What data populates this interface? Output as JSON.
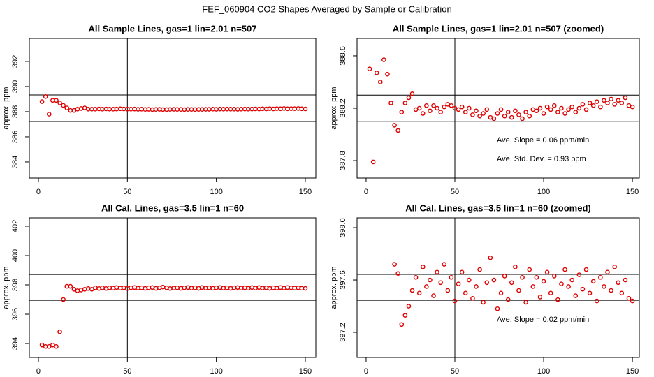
{
  "title": "FEF_060904  CO2 Shapes Averaged by Sample or Calibration",
  "chart_data": [
    {
      "type": "scatter",
      "title": "All Sample Lines, gas=1 lin=2.01 n=507",
      "ylabel": "approx. ppm",
      "color": "#e00000",
      "xlim": [
        -5.1,
        155.9
      ],
      "ylim": [
        382.72,
        393.83
      ],
      "xticks": [
        0,
        50,
        100,
        150
      ],
      "yticks": [
        384,
        386,
        388,
        390,
        392
      ],
      "hlines": [
        389.33,
        387.22
      ],
      "vline": 50,
      "x": [
        2,
        4,
        6,
        8,
        10,
        12,
        14,
        16,
        18,
        20,
        22,
        24,
        26,
        28,
        30,
        32,
        34,
        36,
        38,
        40,
        42,
        44,
        46,
        48,
        50,
        52,
        54,
        56,
        58,
        60,
        62,
        64,
        66,
        68,
        70,
        72,
        74,
        76,
        78,
        80,
        82,
        84,
        86,
        88,
        90,
        92,
        94,
        96,
        98,
        100,
        102,
        104,
        106,
        108,
        110,
        112,
        114,
        116,
        118,
        120,
        122,
        124,
        126,
        128,
        130,
        132,
        134,
        136,
        138,
        140,
        142,
        144,
        146,
        148,
        150
      ],
      "values": [
        388.8,
        389.2,
        387.8,
        388.9,
        388.9,
        388.7,
        388.5,
        388.3,
        388.1,
        388.1,
        388.2,
        388.25,
        388.3,
        388.2,
        388.2,
        388.2,
        388.22,
        388.2,
        388.22,
        388.2,
        388.2,
        388.21,
        388.23,
        388.22,
        388.2,
        388.2,
        388.21,
        388.19,
        388.2,
        388.18,
        388.19,
        388.17,
        388.18,
        388.19,
        388.17,
        388.17,
        388.18,
        388.19,
        388.18,
        388.18,
        388.17,
        388.18,
        388.18,
        388.17,
        388.18,
        388.18,
        388.19,
        388.19,
        388.2,
        388.19,
        388.21,
        388.2,
        388.21,
        388.2,
        388.2,
        388.19,
        388.2,
        388.21,
        388.2,
        388.21,
        388.22,
        388.21,
        388.23,
        388.22,
        388.24,
        388.22,
        388.24,
        388.23,
        388.25,
        388.23,
        388.24,
        388.24,
        388.25,
        388.23,
        388.22
      ]
    },
    {
      "type": "scatter",
      "title": "All Sample Lines, gas=1 lin=2.01 n=507 (zoomed)",
      "ylabel": "approx. ppm",
      "color": "#e00000",
      "xlim": [
        -5.1,
        153.9
      ],
      "ylim": [
        387.667,
        388.733
      ],
      "xticks": [
        0,
        50,
        100,
        150
      ],
      "yticks": [
        387.8,
        388.2,
        388.6
      ],
      "hlines": [
        388.3,
        388.1
      ],
      "vline": 50,
      "annotations": [
        "Ave. Slope =  0.06  ppm/min",
        "Ave. Std. Dev. =  0.93  ppm"
      ],
      "x": [
        2,
        4,
        6,
        8,
        10,
        12,
        14,
        16,
        18,
        20,
        22,
        24,
        26,
        28,
        30,
        32,
        34,
        36,
        38,
        40,
        42,
        44,
        46,
        48,
        50,
        52,
        54,
        56,
        58,
        60,
        62,
        64,
        66,
        68,
        70,
        72,
        74,
        76,
        78,
        80,
        82,
        84,
        86,
        88,
        90,
        92,
        94,
        96,
        98,
        100,
        102,
        104,
        106,
        108,
        110,
        112,
        114,
        116,
        118,
        120,
        122,
        124,
        126,
        128,
        130,
        132,
        134,
        136,
        138,
        140,
        142,
        144,
        146,
        148,
        150
      ],
      "values": [
        388.5,
        387.79,
        388.47,
        388.4,
        388.57,
        388.46,
        388.24,
        388.07,
        388.03,
        388.17,
        388.24,
        388.28,
        388.31,
        388.19,
        388.2,
        388.16,
        388.22,
        388.18,
        388.22,
        388.2,
        388.17,
        388.21,
        388.23,
        388.22,
        388.2,
        388.19,
        388.21,
        388.17,
        388.2,
        388.15,
        388.18,
        388.14,
        388.16,
        388.19,
        388.13,
        388.12,
        388.16,
        388.19,
        388.14,
        388.17,
        388.13,
        388.18,
        388.15,
        388.12,
        388.17,
        388.14,
        388.19,
        388.18,
        388.2,
        388.16,
        388.21,
        388.19,
        388.22,
        388.17,
        388.2,
        388.16,
        388.19,
        388.21,
        388.17,
        388.2,
        388.23,
        388.19,
        388.24,
        388.22,
        388.25,
        388.21,
        388.26,
        388.24,
        388.27,
        388.23,
        388.26,
        388.24,
        388.28,
        388.22,
        388.21
      ]
    },
    {
      "type": "scatter",
      "title": "All Cal. Lines, gas=3.5 lin=1 n=60",
      "ylabel": "approx. ppm",
      "color": "#e00000",
      "xlim": [
        -5.1,
        155.9
      ],
      "ylim": [
        393.05,
        402.57
      ],
      "xticks": [
        0,
        50,
        100,
        150
      ],
      "yticks": [
        394,
        396,
        398,
        400,
        402
      ],
      "hlines": [
        398.71,
        396.95
      ],
      "vline": 50,
      "x": [
        2,
        4,
        6,
        8,
        10,
        12,
        14,
        16,
        18,
        20,
        22,
        24,
        26,
        28,
        30,
        32,
        34,
        36,
        38,
        40,
        42,
        44,
        46,
        48,
        50,
        52,
        54,
        56,
        58,
        60,
        62,
        64,
        66,
        68,
        70,
        72,
        74,
        76,
        78,
        80,
        82,
        84,
        86,
        88,
        90,
        92,
        94,
        96,
        98,
        100,
        102,
        104,
        106,
        108,
        110,
        112,
        114,
        116,
        118,
        120,
        122,
        124,
        126,
        128,
        130,
        132,
        134,
        136,
        138,
        140,
        142,
        144,
        146,
        148,
        150
      ],
      "values": [
        393.9,
        393.8,
        393.8,
        393.9,
        393.8,
        394.8,
        397.0,
        397.9,
        397.9,
        397.7,
        397.6,
        397.65,
        397.7,
        397.75,
        397.7,
        397.8,
        397.75,
        397.8,
        397.75,
        397.8,
        397.78,
        397.82,
        397.78,
        397.8,
        397.75,
        397.8,
        397.82,
        397.78,
        397.8,
        397.76,
        397.8,
        397.82,
        397.76,
        397.8,
        397.85,
        397.8,
        397.75,
        397.78,
        397.8,
        397.76,
        397.8,
        397.82,
        397.78,
        397.8,
        397.76,
        397.82,
        397.78,
        397.8,
        397.77,
        397.8,
        397.82,
        397.78,
        397.8,
        397.76,
        397.8,
        397.82,
        397.78,
        397.8,
        397.77,
        397.82,
        397.78,
        397.82,
        397.78,
        397.8,
        397.76,
        397.8,
        397.78,
        397.82,
        397.78,
        397.82,
        397.8,
        397.78,
        397.8,
        397.77,
        397.76
      ]
    },
    {
      "type": "scatter",
      "title": "All Cal. Lines, gas=3.5 lin=1 n=60 (zoomed)",
      "ylabel": "approx. ppm",
      "color": "#e00000",
      "xlim": [
        -5.1,
        153.9
      ],
      "ylim": [
        397.008,
        398.075
      ],
      "xticks": [
        0,
        50,
        100,
        150
      ],
      "yticks": [
        397.2,
        397.6,
        {
          "value": 398,
          "label": "398.0"
        }
      ],
      "hlines": [
        397.643,
        397.445
      ],
      "vline": 50,
      "annotations": [
        "Ave. Slope =  0.02  ppm/min"
      ],
      "x": [
        16,
        18,
        20,
        22,
        24,
        26,
        28,
        30,
        32,
        34,
        36,
        38,
        40,
        42,
        44,
        46,
        48,
        50,
        52,
        54,
        56,
        58,
        60,
        62,
        64,
        66,
        68,
        70,
        72,
        74,
        76,
        78,
        80,
        82,
        84,
        86,
        88,
        90,
        92,
        94,
        96,
        98,
        100,
        102,
        104,
        106,
        108,
        110,
        112,
        114,
        116,
        118,
        120,
        122,
        124,
        126,
        128,
        130,
        132,
        134,
        136,
        138,
        140,
        142,
        144,
        146,
        148,
        150
      ],
      "values": [
        397.72,
        397.65,
        397.26,
        397.33,
        397.4,
        397.52,
        397.62,
        397.5,
        397.7,
        397.55,
        397.6,
        397.48,
        397.66,
        397.58,
        397.72,
        397.52,
        397.62,
        397.44,
        397.57,
        397.66,
        397.5,
        397.6,
        397.46,
        397.55,
        397.68,
        397.43,
        397.58,
        397.77,
        397.6,
        397.38,
        397.5,
        397.63,
        397.45,
        397.58,
        397.7,
        397.52,
        397.62,
        397.43,
        397.68,
        397.55,
        397.62,
        397.47,
        397.59,
        397.66,
        397.5,
        397.63,
        397.45,
        397.57,
        397.68,
        397.55,
        397.6,
        397.48,
        397.64,
        397.53,
        397.68,
        397.5,
        397.59,
        397.44,
        397.62,
        397.55,
        397.66,
        397.52,
        397.7,
        397.58,
        397.5,
        397.6,
        397.46,
        397.44
      ]
    }
  ]
}
